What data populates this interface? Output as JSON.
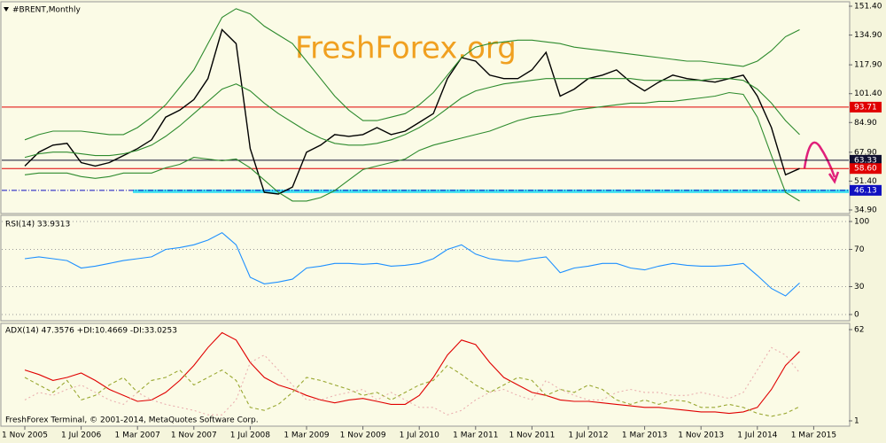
{
  "chart_data": [
    {
      "type": "line",
      "title": "#BRENT,Monthly",
      "watermark": "FreshForex.org",
      "ylim": [
        34.9,
        151.4
      ],
      "yticks": [
        {
          "value": 151.4,
          "label": "151.40"
        },
        {
          "value": 134.9,
          "label": "134.90"
        },
        {
          "value": 117.9,
          "label": "117.90"
        },
        {
          "value": 101.4,
          "label": "101.40"
        },
        {
          "value": 84.9,
          "label": "84.90"
        },
        {
          "value": 67.9,
          "label": "67.90"
        },
        {
          "value": 51.4,
          "label": "51.40"
        },
        {
          "value": 34.9,
          "label": "34.90"
        }
      ],
      "series": [
        {
          "color": "#000000",
          "values": [
            60,
            68,
            72,
            73,
            62,
            60,
            62,
            66,
            70,
            75,
            88,
            92,
            98,
            110,
            138,
            130,
            70,
            45,
            44,
            48,
            68,
            72,
            78,
            77,
            78,
            82,
            78,
            80,
            85,
            90,
            110,
            122,
            120,
            112,
            110,
            110,
            115,
            125,
            100,
            104,
            110,
            112,
            115,
            108,
            103,
            108,
            112,
            110,
            109,
            108,
            110,
            112,
            100,
            82,
            55,
            58.6,
            null
          ]
        },
        {
          "color": "#2e8b2e",
          "values": [
            75,
            78,
            80,
            80,
            80,
            79,
            78,
            78,
            82,
            88,
            95,
            105,
            115,
            130,
            145,
            150,
            147,
            140,
            135,
            130,
            120,
            110,
            100,
            92,
            86,
            86,
            88,
            90,
            95,
            102,
            112,
            122,
            128,
            130,
            131,
            132,
            132,
            131,
            130,
            128,
            127,
            126,
            125,
            124,
            123,
            122,
            121,
            120,
            120,
            119,
            118,
            117,
            120,
            126,
            134,
            138,
            null
          ]
        },
        {
          "color": "#2e8b2e",
          "values": [
            65,
            67,
            68,
            68,
            67,
            66,
            66,
            67,
            69,
            72,
            77,
            83,
            90,
            97,
            104,
            107,
            103,
            96,
            90,
            85,
            80,
            76,
            73,
            72,
            72,
            73,
            75,
            78,
            82,
            87,
            93,
            99,
            103,
            105,
            107,
            108,
            109,
            110,
            110,
            110,
            110,
            110,
            110,
            110,
            109,
            109,
            109,
            109,
            109,
            110,
            110,
            109,
            104,
            96,
            86,
            78,
            null
          ]
        },
        {
          "color": "#2e8b2e",
          "values": [
            55,
            56,
            56,
            56,
            54,
            53,
            54,
            56,
            56,
            56,
            59,
            61,
            65,
            64,
            63,
            64,
            59,
            52,
            45,
            40,
            40,
            42,
            46,
            52,
            58,
            60,
            62,
            64,
            69,
            72,
            74,
            76,
            78,
            80,
            83,
            86,
            88,
            89,
            90,
            92,
            93,
            94,
            95,
            96,
            96,
            97,
            97,
            98,
            99,
            100,
            102,
            101,
            88,
            66,
            45,
            40,
            null
          ]
        }
      ],
      "levels": [
        {
          "value": 93.71,
          "label": "93.71",
          "color": "#e00000"
        },
        {
          "value": 63.33,
          "label": "63.33",
          "color": "#101030"
        },
        {
          "value": 58.6,
          "label": "58.60",
          "color": "#e00000"
        },
        {
          "value": 46.13,
          "label": "46.13",
          "color": "#1010c0"
        }
      ]
    },
    {
      "type": "line",
      "title": "RSI(14) 33.9313",
      "ylim": [
        0,
        100
      ],
      "yticks": [
        0,
        30,
        70,
        100
      ],
      "grid": true,
      "series": [
        {
          "color": "#1e90ff",
          "values": [
            60,
            62,
            60,
            58,
            50,
            52,
            55,
            58,
            60,
            62,
            70,
            72,
            75,
            80,
            88,
            75,
            40,
            33,
            35,
            38,
            50,
            52,
            55,
            55,
            54,
            55,
            52,
            53,
            55,
            60,
            70,
            75,
            65,
            60,
            58,
            57,
            60,
            62,
            45,
            50,
            52,
            55,
            55,
            50,
            48,
            52,
            55,
            53,
            52,
            52,
            53,
            55,
            42,
            28,
            20,
            33.9313,
            null
          ]
        }
      ]
    },
    {
      "type": "line",
      "title": "ADX(14) 47.3576 +DI:10.4669 -DI:33.0253",
      "footer": "FreshForex Terminal, © 2001-2014, MetaQuotes Software Corp.",
      "ylim": [
        1,
        62
      ],
      "yticks": [
        1,
        62
      ],
      "categories": [
        "1 Nov 2005",
        null,
        null,
        null,
        "1 Jul 2006",
        null,
        null,
        null,
        "1 Mar 2007",
        null,
        null,
        null,
        "1 Nov 2007",
        null,
        null,
        null,
        "1 Jul 2008",
        null,
        null,
        null,
        "1 Mar 2009",
        null,
        null,
        null,
        "1 Nov 2009",
        null,
        null,
        null,
        "1 Jul 2010",
        null,
        null,
        null,
        "1 Mar 2011",
        null,
        null,
        null,
        "1 Nov 2011",
        null,
        null,
        null,
        "1 Jul 2012",
        null,
        null,
        null,
        "1 Mar 2013",
        null,
        null,
        null,
        "1 Nov 2013",
        null,
        null,
        null,
        "1 Jul 2014",
        null,
        null,
        null,
        "1 Mar 2015"
      ],
      "series": [
        {
          "color": "#e00000",
          "values": [
            35,
            32,
            28,
            30,
            33,
            28,
            22,
            18,
            14,
            15,
            20,
            28,
            38,
            50,
            60,
            55,
            40,
            30,
            25,
            22,
            18,
            15,
            13,
            15,
            16,
            14,
            12,
            12,
            18,
            30,
            45,
            55,
            52,
            40,
            30,
            25,
            20,
            18,
            15,
            14,
            14,
            13,
            12,
            11,
            10,
            10,
            9,
            8,
            7,
            7,
            6,
            7,
            10,
            22,
            38,
            47.3576,
            null
          ]
        },
        {
          "color": "#9aa832",
          "values": [
            30,
            25,
            20,
            28,
            15,
            18,
            25,
            30,
            20,
            28,
            30,
            35,
            25,
            30,
            35,
            28,
            10,
            8,
            12,
            20,
            30,
            28,
            25,
            22,
            18,
            20,
            15,
            20,
            25,
            28,
            38,
            32,
            25,
            20,
            25,
            30,
            28,
            18,
            22,
            20,
            25,
            22,
            15,
            12,
            15,
            12,
            15,
            14,
            10,
            10,
            12,
            10,
            6,
            4,
            6,
            10.4669,
            null
          ]
        },
        {
          "color": "#eab0b0",
          "values": [
            15,
            20,
            18,
            22,
            25,
            20,
            15,
            12,
            20,
            15,
            12,
            10,
            8,
            5,
            5,
            15,
            40,
            45,
            35,
            25,
            15,
            15,
            18,
            20,
            22,
            15,
            20,
            15,
            10,
            10,
            5,
            8,
            15,
            20,
            22,
            18,
            15,
            28,
            22,
            18,
            15,
            15,
            20,
            22,
            20,
            20,
            18,
            18,
            20,
            18,
            16,
            20,
            35,
            50,
            45,
            33.0253,
            null
          ]
        }
      ]
    }
  ]
}
